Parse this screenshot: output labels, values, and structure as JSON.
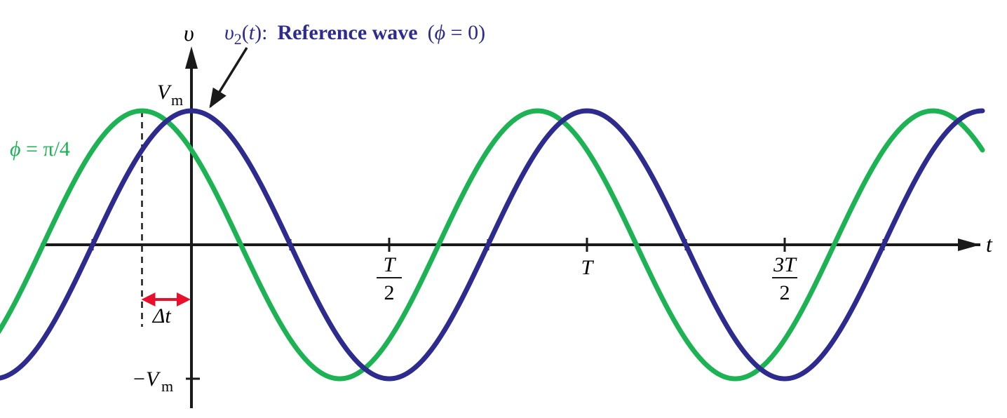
{
  "chart_data": {
    "type": "line",
    "axes": {
      "y_label": "υ",
      "x_label": "t",
      "y_tick_top": {
        "main": "V",
        "sub": "m",
        "value": 1
      },
      "y_tick_bottom": {
        "minus": "−",
        "main": "V",
        "sub": "m",
        "value": -1
      },
      "x_ticks": [
        {
          "t": 0.5,
          "num": "T",
          "den": "2"
        },
        {
          "t": 1.0,
          "label": "T"
        },
        {
          "t": 1.5,
          "num": "3T",
          "den": "2"
        }
      ],
      "x_range_periods": [
        -0.6,
        2.0
      ],
      "y_range": [
        -1.22,
        1.22
      ]
    },
    "series": [
      {
        "id": "reference",
        "color": "#2e2b8f",
        "phase": 0,
        "x_start_periods": -0.6,
        "x_end_periods": 2.0,
        "label": {
          "prefix_italic": "υ",
          "subscript": "2",
          "paren_open": "(",
          "var": "t",
          "paren_close": "):",
          "bold": "Reference wave",
          "phase_open": "(",
          "phi": "ϕ",
          "phase_rest": " = 0)"
        }
      },
      {
        "id": "shifted",
        "color": "#1db354",
        "phase": 0.7853981634,
        "x_start_periods": -0.6,
        "x_end_periods": 2.0,
        "label": {
          "phi": "ϕ",
          "rest": " = π/4"
        }
      }
    ],
    "annotation": {
      "delta_t": "Δt",
      "delta_t_color": "#e8112d"
    }
  }
}
